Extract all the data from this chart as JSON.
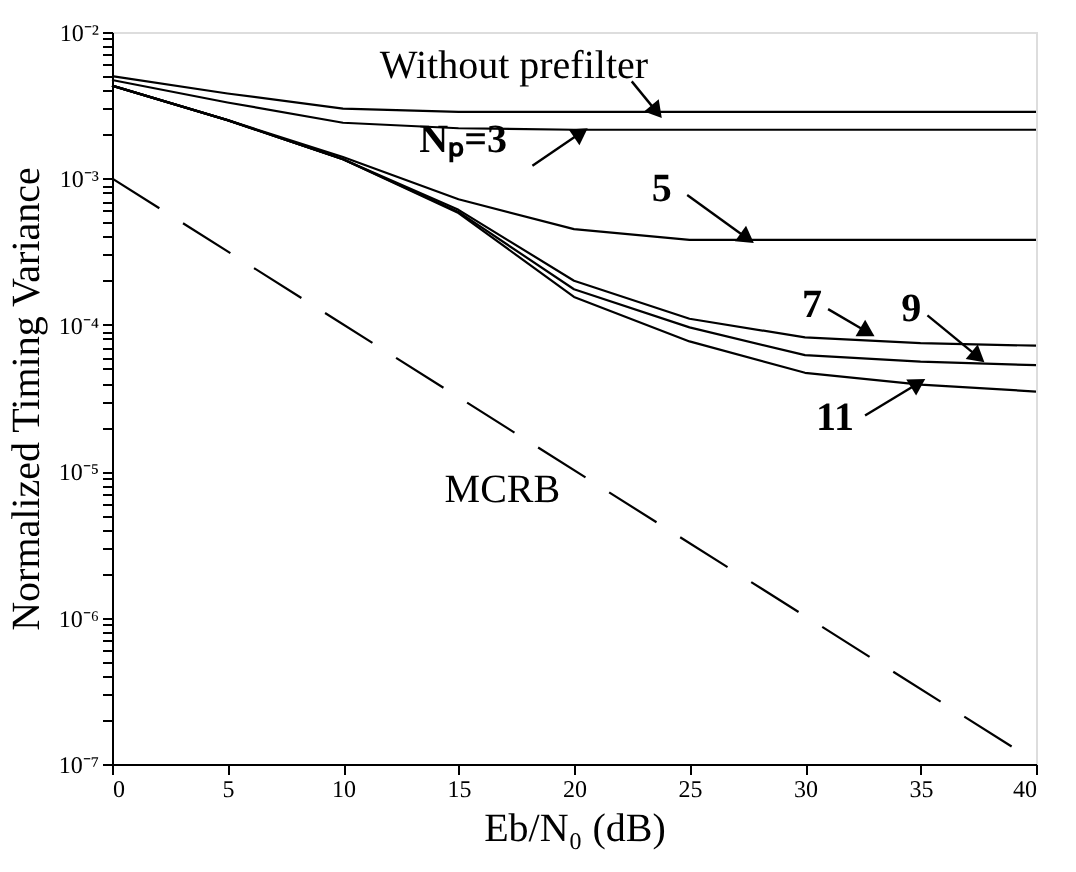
{
  "chart_data": {
    "type": "line",
    "xlabel": "Eb/N₀ (dB)",
    "ylabel": "Normalized Timing Variance",
    "log": "y",
    "grid": false,
    "legend": "right",
    "marker": "none",
    "x": [
      0,
      5,
      10,
      15,
      20,
      25,
      30,
      35,
      40
    ],
    "xlim": [
      0,
      40
    ],
    "xticks": [
      0,
      5,
      10,
      15,
      20,
      25,
      30,
      35,
      40
    ],
    "ylim": [
      1e-07,
      0.01
    ],
    "yticks": [
      {
        "value": 1e-07,
        "label": "10⁻⁷"
      },
      {
        "value": 2e-07,
        "label": null
      },
      {
        "value": 3e-07,
        "label": null
      },
      {
        "value": 4e-07,
        "label": null
      },
      {
        "value": 5e-07,
        "label": null
      },
      {
        "value": 6e-07,
        "label": null
      },
      {
        "value": 7e-07,
        "label": null
      },
      {
        "value": 8e-07,
        "label": null
      },
      {
        "value": 9e-07,
        "label": null
      },
      {
        "value": 1e-06,
        "label": "10⁻⁶"
      },
      {
        "value": 2e-06,
        "label": null
      },
      {
        "value": 3e-06,
        "label": null
      },
      {
        "value": 4e-06,
        "label": null
      },
      {
        "value": 5e-06,
        "label": null
      },
      {
        "value": 6e-06,
        "label": null
      },
      {
        "value": 7e-06,
        "label": null
      },
      {
        "value": 8e-06,
        "label": null
      },
      {
        "value": 9e-06,
        "label": null
      },
      {
        "value": 1e-05,
        "label": "10⁻⁵"
      },
      {
        "value": 2e-05,
        "label": null
      },
      {
        "value": 3e-05,
        "label": null
      },
      {
        "value": 4e-05,
        "label": null
      },
      {
        "value": 5e-05,
        "label": null
      },
      {
        "value": 6e-05,
        "label": null
      },
      {
        "value": 7e-05,
        "label": null
      },
      {
        "value": 8e-05,
        "label": null
      },
      {
        "value": 9e-05,
        "label": null
      },
      {
        "value": 0.0001,
        "label": "10⁻⁴"
      },
      {
        "value": 0.0002,
        "label": null
      },
      {
        "value": 0.0003,
        "label": null
      },
      {
        "value": 0.0004,
        "label": null
      },
      {
        "value": 0.0005,
        "label": null
      },
      {
        "value": 0.0006,
        "label": null
      },
      {
        "value": 0.0007,
        "label": null
      },
      {
        "value": 0.0008,
        "label": null
      },
      {
        "value": 0.0009,
        "label": null
      },
      {
        "value": 0.001,
        "label": "10⁻³"
      },
      {
        "value": 0.002,
        "label": null
      },
      {
        "value": 0.003,
        "label": null
      },
      {
        "value": 0.004,
        "label": null
      },
      {
        "value": 0.005,
        "label": null
      },
      {
        "value": 0.006,
        "label": null
      },
      {
        "value": 0.007,
        "label": null
      },
      {
        "value": 0.008,
        "label": null
      },
      {
        "value": 0.009,
        "label": null
      },
      {
        "value": 0.01,
        "label": "10⁻²"
      }
    ],
    "series": [
      {
        "name": "Without prefilter",
        "color": "#000000",
        "line_style": "solid",
        "values": [
          0.005,
          0.0038,
          0.003,
          0.00285,
          0.00285,
          0.00285,
          0.00285,
          0.00285,
          0.00285
        ]
      },
      {
        "name": "Nₚ=3",
        "color": "#000000",
        "line_style": "solid",
        "values": [
          0.0047,
          0.0033,
          0.0024,
          0.0022,
          0.00215,
          0.00215,
          0.00215,
          0.00215,
          0.00215
        ]
      },
      {
        "name": "5",
        "color": "#000000",
        "line_style": "solid",
        "values": [
          0.0043,
          0.0025,
          0.0014,
          0.00072,
          0.00045,
          0.00038,
          0.00038,
          0.00038,
          0.00038
        ]
      },
      {
        "name": "7",
        "color": "#000000",
        "line_style": "solid",
        "values": [
          0.0043,
          0.0025,
          0.00135,
          0.00061,
          0.0002,
          0.00011,
          8.2e-05,
          7.5e-05,
          7.2e-05
        ]
      },
      {
        "name": "9",
        "color": "#000000",
        "line_style": "solid",
        "values": [
          0.0043,
          0.0025,
          0.00135,
          0.00059,
          0.000175,
          9.6e-05,
          6.2e-05,
          5.6e-05,
          5.3e-05
        ]
      },
      {
        "name": "11",
        "color": "#000000",
        "line_style": "solid",
        "values": [
          0.0043,
          0.0025,
          0.00135,
          0.00058,
          0.000155,
          7.7e-05,
          4.7e-05,
          3.9e-05,
          3.5e-05
        ]
      },
      {
        "name": "MCRB",
        "color": "#000000",
        "line_style": "dashed",
        "x": [
          0,
          39
        ],
        "values": [
          0.001,
          1.3e-07
        ]
      }
    ]
  }
}
